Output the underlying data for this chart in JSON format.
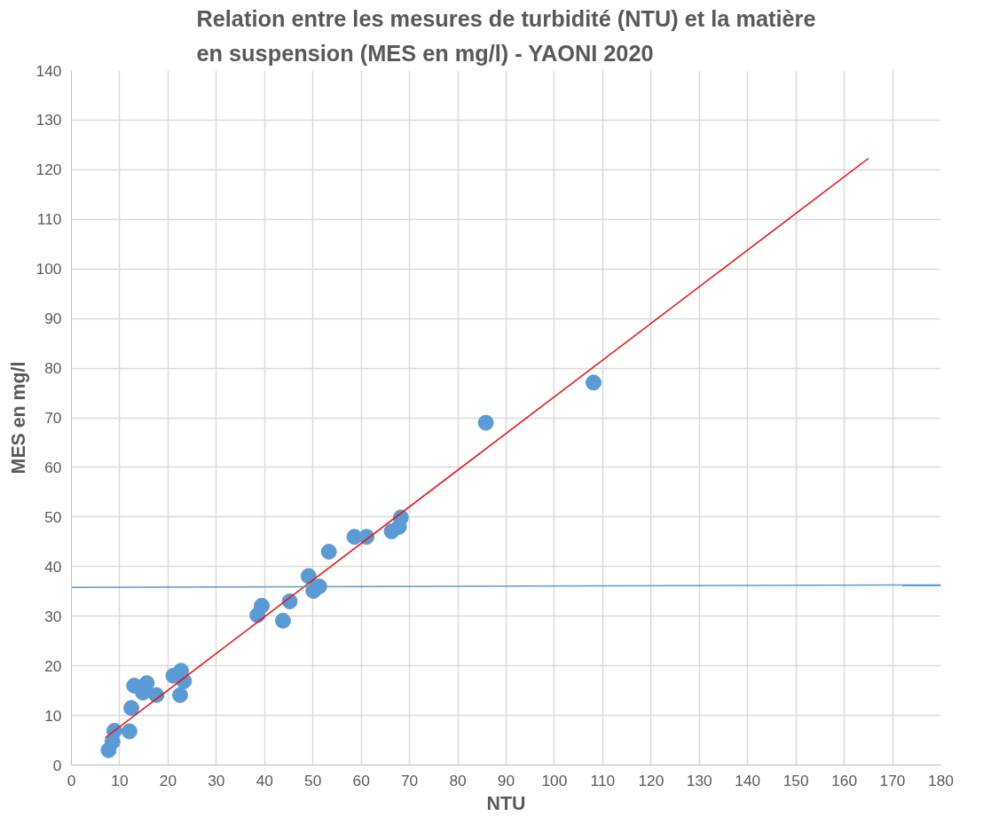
{
  "chart_data": {
    "type": "scatter",
    "title": "Relation entre les mesures de turbidité (NTU) et la matière\nen suspension (MES en mg/l) - YAONI 2020",
    "xlabel": "NTU",
    "ylabel": "MES en mg/l",
    "xlim": [
      0,
      180
    ],
    "xticks": [
      0,
      10,
      20,
      30,
      40,
      50,
      60,
      70,
      80,
      90,
      100,
      110,
      120,
      130,
      140,
      150,
      160,
      170,
      180
    ],
    "ylim": [
      0,
      140
    ],
    "yticks": [
      0,
      10,
      20,
      30,
      40,
      50,
      60,
      70,
      80,
      90,
      100,
      110,
      120,
      130,
      140
    ],
    "grid": true,
    "marker": "circle",
    "series": [
      {
        "color": "#5b9bd5",
        "x": [
          7.7,
          8.5,
          8.9,
          12,
          12.4,
          13,
          14.8,
          15.6,
          17.6,
          21.1,
          22.7,
          22.5,
          23.3,
          38.5,
          39.4,
          43.8,
          45.2,
          49.1,
          50.1,
          51.3,
          53.3,
          58.6,
          61.1,
          66.3,
          67.8,
          68.2,
          85.8,
          108.1
        ],
        "values": [
          3,
          4.7,
          6.9,
          6.8,
          11.5,
          16,
          14.6,
          16.5,
          14.1,
          18,
          19,
          14.1,
          16.9,
          30.2,
          32.1,
          29.1,
          33,
          38.1,
          35.1,
          36,
          43,
          46,
          46,
          47.1,
          48,
          49.9,
          69,
          77.1
        ]
      },
      {
        "type": "line",
        "marker": "none",
        "color": "#ff0000",
        "x": [
          7,
          165
        ],
        "values": [
          5.5,
          122.3
        ]
      },
      {
        "type": "line",
        "marker": "none",
        "color": "#5b9bd5",
        "x": [
          0,
          180
        ],
        "values": [
          35.8,
          36.3
        ]
      }
    ]
  }
}
